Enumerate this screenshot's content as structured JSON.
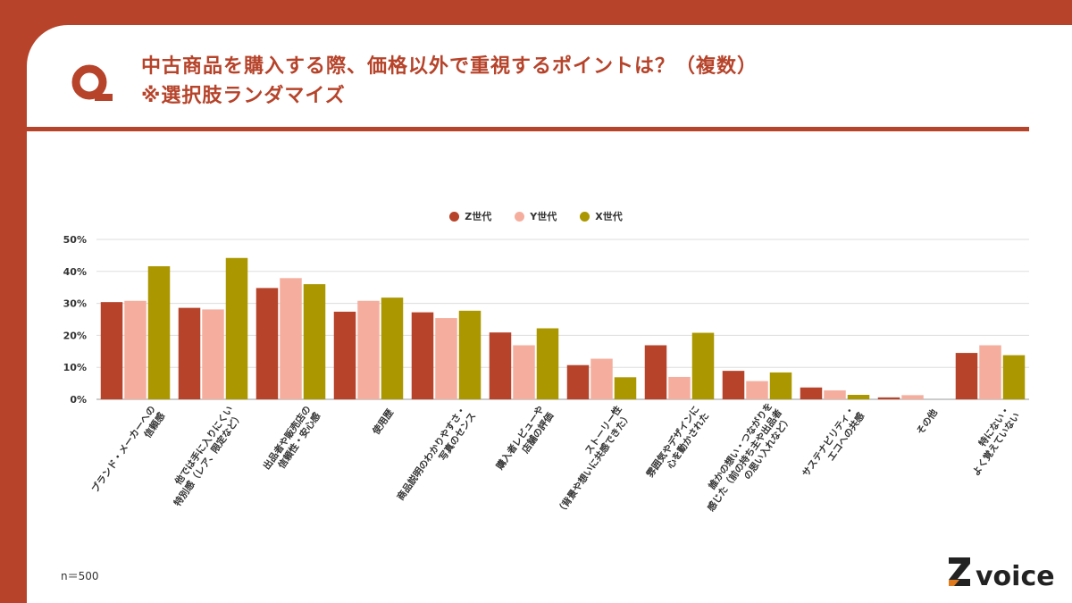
{
  "title": {
    "line1": "中古商品を購入する際、価格以外で重視するポイントは？（複数）",
    "line2": "※選択肢ランダマイズ"
  },
  "footnote": "n＝500",
  "brand": {
    "name": "voice",
    "icon": "z-logo-icon"
  },
  "colors": {
    "accent": "#b6432a",
    "z": "#b6432a",
    "y": "#f5ae9e",
    "x": "#ab9700"
  },
  "chart_data": {
    "type": "bar",
    "ylim": [
      0,
      50
    ],
    "yticks": [
      "50%",
      "40%",
      "30%",
      "20%",
      "10%",
      "0%"
    ],
    "legend_position": "top-center",
    "grid": true,
    "categories": [
      [
        "ブランド・メーカーへの",
        "信頼感"
      ],
      [
        "他では手に入りにくい",
        "特別感（レア、限定など）"
      ],
      [
        "出品者や販売店の",
        "信頼性・安心感"
      ],
      [
        "使用歴"
      ],
      [
        "商品説明のわかりやすさ・",
        "写真のセンス"
      ],
      [
        "購入者レビューや",
        "店舗の評価"
      ],
      [
        "ストーリー性",
        "（背景や想いに共感できた）"
      ],
      [
        "雰囲気やデザインに",
        "心を動かされた"
      ],
      [
        "誰かの想い・つながりを",
        "感じた（前の持ち主や出品者",
        "の思い入れなど）"
      ],
      [
        "サステナビリティ・",
        "エコへの共感"
      ],
      [
        "その他"
      ],
      [
        "特にない・",
        "よく覚えていない"
      ]
    ],
    "series": [
      {
        "name": "Z世代",
        "color": "#b6432a",
        "values": [
          30.4,
          28.6,
          34.8,
          27.4,
          27.2,
          20.9,
          10.7,
          16.9,
          8.9,
          3.7,
          0.6,
          14.5
        ]
      },
      {
        "name": "Y世代",
        "color": "#f5ae9e",
        "values": [
          30.8,
          28.1,
          37.9,
          30.8,
          25.4,
          16.9,
          12.7,
          7.0,
          5.7,
          2.8,
          1.3,
          16.9
        ]
      },
      {
        "name": "X世代",
        "color": "#ab9700",
        "values": [
          41.6,
          44.2,
          36.0,
          31.8,
          27.7,
          22.2,
          6.9,
          20.8,
          8.4,
          1.4,
          0,
          13.8
        ]
      }
    ]
  }
}
